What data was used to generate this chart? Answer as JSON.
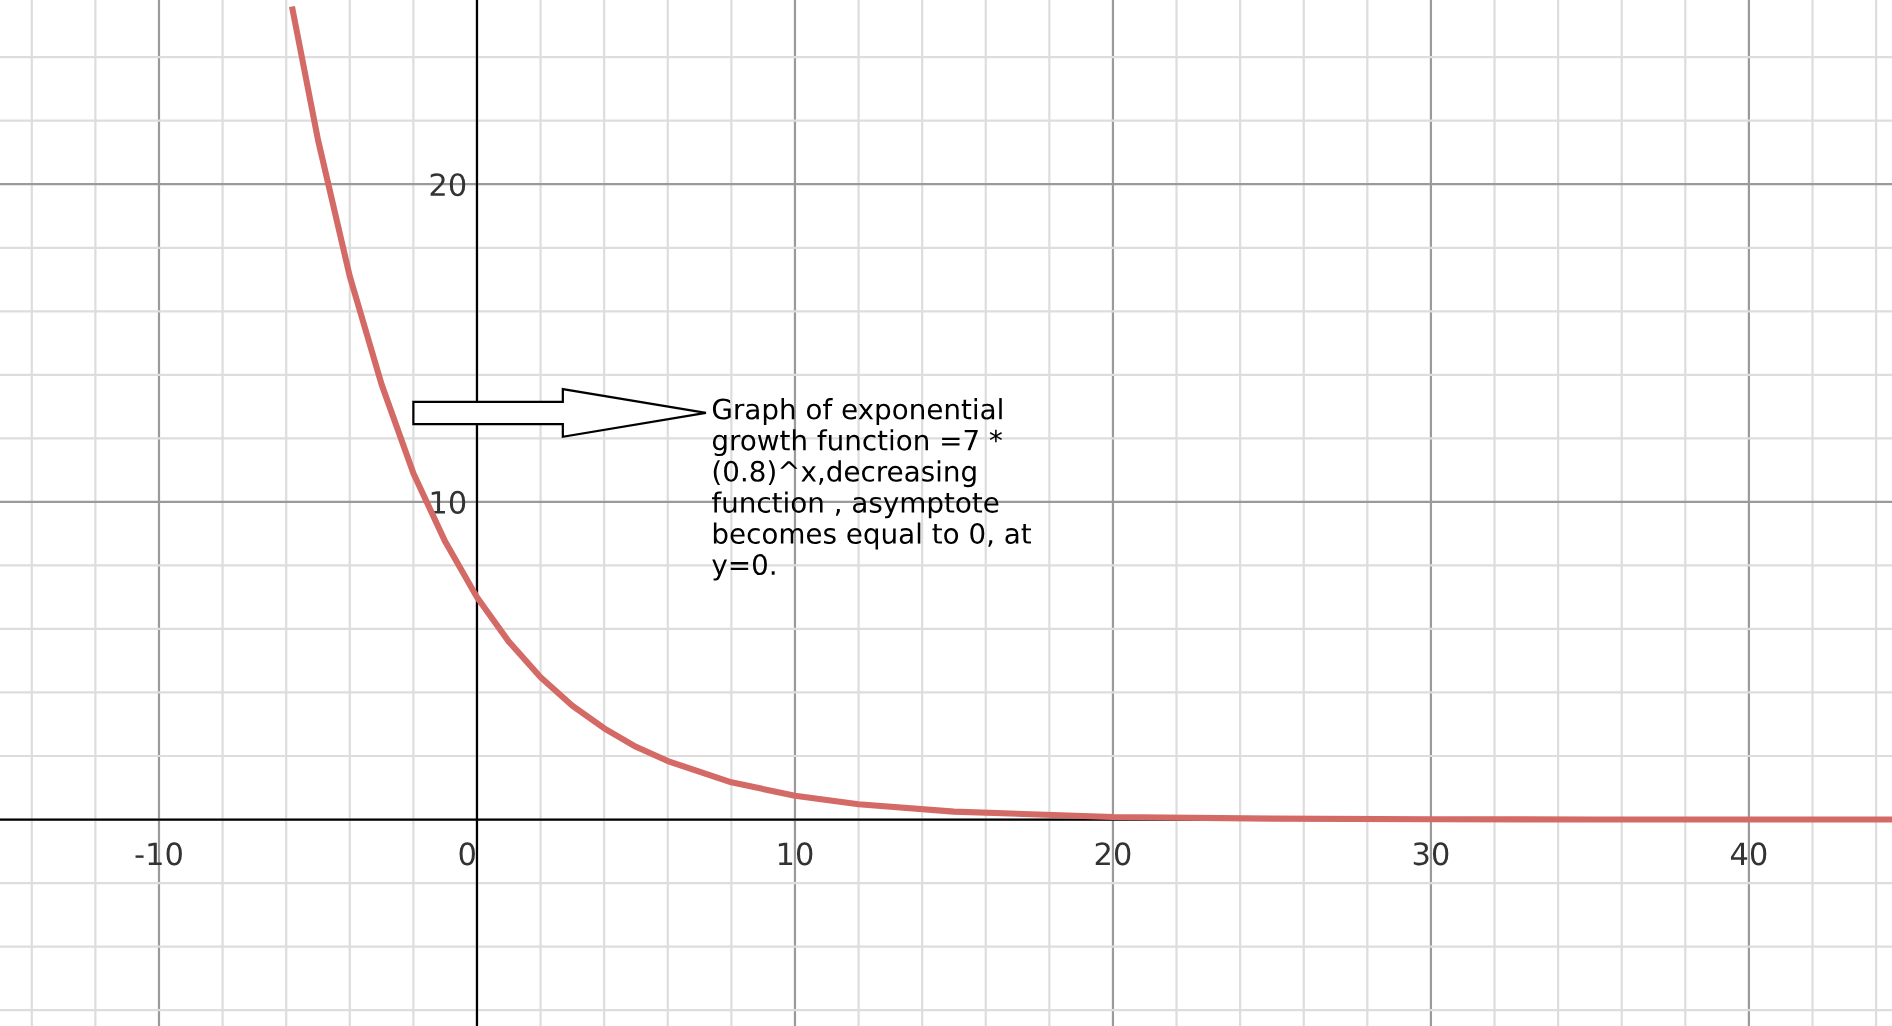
{
  "chart_data": {
    "type": "line",
    "x": [
      -5.8,
      -5,
      -4,
      -3,
      -2,
      -1,
      0,
      1,
      2,
      3,
      4,
      5,
      6,
      8,
      10,
      12,
      15,
      20,
      25,
      30,
      35,
      44.5
    ],
    "series": [
      {
        "color": "#d46a66",
        "values": [
          25.5,
          21.4,
          17.1,
          13.7,
          10.9,
          8.75,
          7,
          5.6,
          4.48,
          3.58,
          2.87,
          2.29,
          1.84,
          1.17,
          0.75,
          0.48,
          0.25,
          0.08,
          0.03,
          0.01,
          0,
          0
        ]
      }
    ],
    "xlim": [
      -15,
      44.5
    ],
    "ylim": [
      -6.5,
      25.8
    ],
    "xticks": [
      {
        "value": -14,
        "label": null
      },
      {
        "value": -12,
        "label": null
      },
      -10,
      {
        "value": -8,
        "label": null
      },
      {
        "value": -6,
        "label": null
      },
      {
        "value": -4,
        "label": null
      },
      {
        "value": -2,
        "label": null
      },
      0,
      {
        "value": 2,
        "label": null
      },
      {
        "value": 4,
        "label": null
      },
      {
        "value": 6,
        "label": null
      },
      {
        "value": 8,
        "label": null
      },
      10,
      {
        "value": 12,
        "label": null
      },
      {
        "value": 14,
        "label": null
      },
      {
        "value": 16,
        "label": null
      },
      {
        "value": 18,
        "label": null
      },
      20,
      {
        "value": 22,
        "label": null
      },
      {
        "value": 24,
        "label": null
      },
      {
        "value": 26,
        "label": null
      },
      {
        "value": 28,
        "label": null
      },
      30,
      {
        "value": 32,
        "label": null
      },
      {
        "value": 34,
        "label": null
      },
      {
        "value": 36,
        "label": null
      },
      {
        "value": 38,
        "label": null
      },
      40,
      {
        "value": 42,
        "label": null
      },
      {
        "value": 44,
        "label": null
      }
    ],
    "yticks": [
      {
        "value": -6,
        "label": null
      },
      {
        "value": -4,
        "label": null
      },
      {
        "value": -2,
        "label": null
      },
      {
        "value": 0,
        "label": null
      },
      {
        "value": 2,
        "label": null
      },
      {
        "value": 4,
        "label": null
      },
      {
        "value": 6,
        "label": null
      },
      {
        "value": 8,
        "label": null
      },
      10,
      {
        "value": 12,
        "label": null
      },
      {
        "value": 14,
        "label": null
      },
      {
        "value": 16,
        "label": null
      },
      {
        "value": 18,
        "label": null
      },
      20,
      {
        "value": 22,
        "label": null
      },
      {
        "value": 24,
        "label": null
      }
    ],
    "grid": true,
    "marker": "none",
    "line_style": "solid",
    "annotations": [
      "Graph of exponential\ngrowth function =7 *\n(0.8)^x,decreasing\nfunction , asymptote\nbecomes equal to 0, at\ny=0."
    ]
  }
}
